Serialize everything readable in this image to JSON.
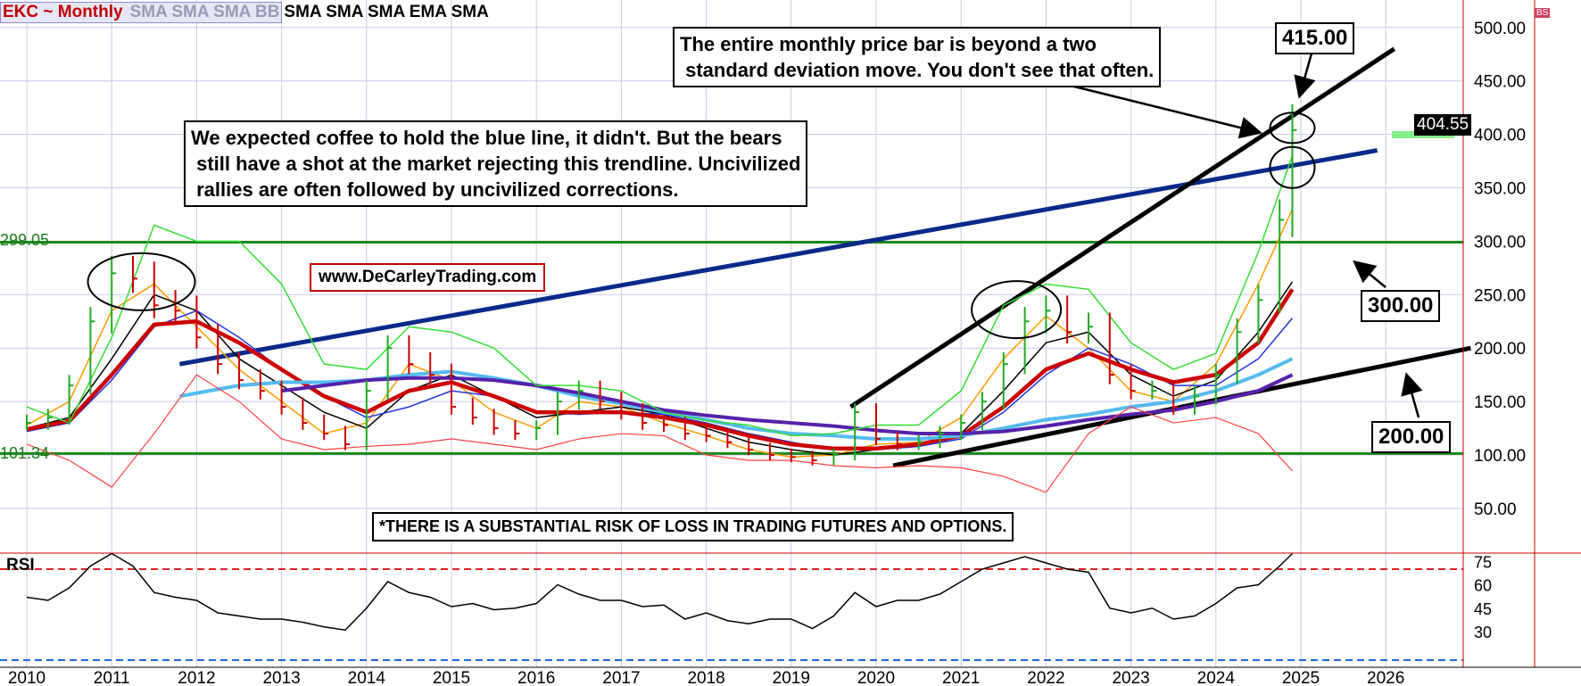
{
  "header": {
    "symbol": "EKC ~ Monthly",
    "studies_faded": "SMA SMA SMA BB",
    "studies": "SMA SMA SMA EMA SMA"
  },
  "annotations": {
    "std_note": "The entire monthly price bar is beyond a two\n standard deviation move. You don't see that often.",
    "trend_note": "We expected coffee to hold the blue line, it didn't. But the bears\n still have a shot at the market rejecting this trendline. Uncivilized\n rallies are often followed by uncivilized corrections.",
    "website": "www.DeCarleyTrading.com",
    "risk": "*THERE IS A SUBSTANTIAL RISK OF LOSS IN TRADING FUTURES AND OPTIONS.",
    "level_415": "415.00",
    "level_300": "300.00",
    "level_200": "200.00",
    "tag_high": "299.05",
    "tag_low": "101.34",
    "last_price": "404.55",
    "bs_badge": "BS"
  },
  "rsi_panel": {
    "title": "RSI"
  },
  "colors": {
    "grid": "#c8c8e8",
    "axis": "#cc0000",
    "hline": "#1a8a1a",
    "blue_trend": "#0a2a8a",
    "black_trend": "#000000",
    "bb": "#ff4040",
    "bb_mid": "#33dd33",
    "ema": "#cc0000",
    "sma_fast": "#ff9900",
    "sma_mid": "#000000",
    "sma_blue": "#2233dd",
    "sma_light": "#55bbf0",
    "sma_purple": "#5522aa"
  },
  "chart_data": {
    "type": "line",
    "title": "EKC ~ Monthly",
    "x_ticks": [
      "2010",
      "2011",
      "2012",
      "2013",
      "2014",
      "2015",
      "2016",
      "2017",
      "2018",
      "2019",
      "2020",
      "2021",
      "2022",
      "2023",
      "2024",
      "2025",
      "2026"
    ],
    "y_ticks": [
      "500.00",
      "450.00",
      "400.00",
      "350.00",
      "300.00",
      "250.00",
      "200.00",
      "150.00",
      "100.00",
      "50.00"
    ],
    "ylim": [
      20,
      530
    ],
    "horizontal_lines": [
      299.05,
      101.34
    ],
    "price": {
      "x": [
        2010.0,
        2010.25,
        2010.5,
        2010.75,
        2011.0,
        2011.25,
        2011.5,
        2011.75,
        2012.0,
        2012.25,
        2012.5,
        2012.75,
        2013.0,
        2013.25,
        2013.5,
        2013.75,
        2014.0,
        2014.25,
        2014.5,
        2014.75,
        2015.0,
        2015.25,
        2015.5,
        2015.75,
        2016.0,
        2016.25,
        2016.5,
        2016.75,
        2017.0,
        2017.25,
        2017.5,
        2017.75,
        2018.0,
        2018.25,
        2018.5,
        2018.75,
        2019.0,
        2019.25,
        2019.5,
        2019.75,
        2020.0,
        2020.25,
        2020.5,
        2020.75,
        2021.0,
        2021.25,
        2021.5,
        2021.75,
        2022.0,
        2022.25,
        2022.5,
        2022.75,
        2023.0,
        2023.25,
        2023.5,
        2023.75,
        2024.0,
        2024.25,
        2024.5,
        2024.75,
        2024.9
      ],
      "values": [
        130,
        135,
        165,
        225,
        270,
        265,
        240,
        235,
        210,
        185,
        170,
        160,
        145,
        130,
        120,
        110,
        160,
        200,
        185,
        175,
        145,
        135,
        125,
        120,
        125,
        150,
        160,
        150,
        140,
        130,
        128,
        120,
        118,
        112,
        105,
        100,
        98,
        95,
        100,
        140,
        115,
        110,
        112,
        120,
        130,
        150,
        185,
        225,
        235,
        215,
        220,
        175,
        160,
        160,
        145,
        155,
        175,
        215,
        245,
        320,
        404
      ]
    },
    "series": [
      {
        "name": "SMA",
        "x": [
          2010.0,
          2010.5,
          2011.0,
          2011.5,
          2012.0,
          2012.5,
          2013.0,
          2013.5,
          2014.0,
          2014.5,
          2015.0,
          2015.5,
          2016.0,
          2016.5,
          2017.0,
          2017.5,
          2018.0,
          2018.5,
          2019.0,
          2019.5,
          2020.0,
          2020.5,
          2021.0,
          2021.5,
          2022.0,
          2022.5,
          2023.0,
          2023.5,
          2024.0,
          2024.5,
          2024.9
        ],
        "values": [
          128,
          150,
          235,
          260,
          220,
          180,
          150,
          120,
          130,
          185,
          170,
          140,
          125,
          150,
          145,
          130,
          118,
          105,
          98,
          100,
          110,
          112,
          135,
          190,
          230,
          200,
          160,
          150,
          185,
          260,
          330
        ]
      },
      {
        "name": "SMA",
        "x": [
          2010.0,
          2010.5,
          2011.0,
          2011.5,
          2012.0,
          2012.5,
          2013.0,
          2013.5,
          2014.0,
          2014.5,
          2015.0,
          2015.5,
          2016.0,
          2016.5,
          2017.0,
          2017.5,
          2018.0,
          2018.5,
          2019.0,
          2019.5,
          2020.0,
          2020.5,
          2021.0,
          2021.5,
          2022.0,
          2022.5,
          2023.0,
          2023.5,
          2024.0,
          2024.5,
          2024.9
        ],
        "values": [
          125,
          135,
          190,
          250,
          235,
          190,
          165,
          140,
          125,
          160,
          175,
          155,
          135,
          140,
          145,
          138,
          125,
          112,
          105,
          100,
          105,
          108,
          120,
          160,
          205,
          215,
          175,
          155,
          170,
          215,
          262
        ]
      },
      {
        "name": "SMA",
        "x": [
          2010.0,
          2010.5,
          2011.0,
          2011.5,
          2012.0,
          2012.5,
          2013.0,
          2013.5,
          2014.0,
          2014.5,
          2015.0,
          2015.5,
          2016.0,
          2016.5,
          2017.0,
          2017.5,
          2018.0,
          2018.5,
          2019.0,
          2019.5,
          2020.0,
          2020.5,
          2021.0,
          2021.5,
          2022.0,
          2022.5,
          2023.0,
          2023.5,
          2024.0,
          2024.5,
          2024.9
        ],
        "values": [
          122,
          130,
          170,
          220,
          235,
          210,
          180,
          155,
          135,
          145,
          160,
          155,
          140,
          138,
          140,
          138,
          130,
          120,
          112,
          105,
          105,
          108,
          115,
          140,
          175,
          200,
          185,
          165,
          165,
          190,
          228
        ]
      },
      {
        "name": "EMA",
        "x": [
          2010.0,
          2010.5,
          2011.0,
          2011.5,
          2012.0,
          2012.5,
          2013.0,
          2013.5,
          2014.0,
          2014.5,
          2015.0,
          2015.5,
          2016.0,
          2016.5,
          2017.0,
          2017.5,
          2018.0,
          2018.5,
          2019.0,
          2019.5,
          2020.0,
          2020.5,
          2021.0,
          2021.5,
          2022.0,
          2022.5,
          2023.0,
          2023.5,
          2024.0,
          2024.5,
          2024.9
        ],
        "values": [
          124,
          132,
          175,
          222,
          225,
          205,
          180,
          155,
          140,
          160,
          168,
          155,
          140,
          140,
          140,
          135,
          128,
          118,
          110,
          106,
          106,
          110,
          118,
          145,
          180,
          195,
          180,
          168,
          175,
          205,
          255
        ]
      },
      {
        "name": "SMA",
        "x": [
          2011.8,
          2012.5,
          2013.0,
          2013.5,
          2014.0,
          2014.5,
          2015.0,
          2015.5,
          2016.0,
          2016.5,
          2017.0,
          2017.5,
          2018.0,
          2018.5,
          2019.0,
          2019.5,
          2020.0,
          2020.5,
          2021.0,
          2021.5,
          2022.0,
          2022.5,
          2023.0,
          2023.5,
          2024.0,
          2024.5,
          2024.9
        ],
        "values": [
          155,
          165,
          168,
          168,
          170,
          175,
          178,
          172,
          165,
          155,
          148,
          140,
          133,
          125,
          120,
          118,
          115,
          115,
          118,
          125,
          133,
          138,
          145,
          150,
          160,
          175,
          190
        ]
      },
      {
        "name": "SMA",
        "x": [
          2013.0,
          2013.5,
          2014.0,
          2014.5,
          2015.0,
          2015.5,
          2016.0,
          2016.5,
          2017.0,
          2017.5,
          2018.0,
          2018.5,
          2019.0,
          2019.5,
          2020.0,
          2020.5,
          2021.0,
          2021.5,
          2022.0,
          2022.5,
          2023.0,
          2023.5,
          2024.0,
          2024.5,
          2024.9
        ],
        "values": [
          160,
          165,
          170,
          172,
          172,
          170,
          165,
          158,
          150,
          142,
          137,
          133,
          130,
          127,
          123,
          120,
          120,
          122,
          127,
          133,
          138,
          142,
          150,
          160,
          175
        ]
      },
      {
        "name": "BB",
        "x": [
          2010.0,
          2010.5,
          2011.0,
          2011.5,
          2012.0,
          2012.5,
          2013.0,
          2013.5,
          2014.0,
          2014.5,
          2015.0,
          2015.5,
          2016.0,
          2016.5,
          2017.0,
          2017.5,
          2018.0,
          2018.5,
          2019.0,
          2019.5,
          2020.0,
          2020.5,
          2021.0,
          2021.5,
          2022.0,
          2022.5,
          2023.0,
          2023.5,
          2024.0,
          2024.5,
          2024.9
        ],
        "values": [
          145,
          130,
          210,
          315,
          300,
          300,
          260,
          185,
          180,
          220,
          215,
          200,
          165,
          165,
          160,
          140,
          132,
          128,
          118,
          120,
          128,
          128,
          160,
          240,
          260,
          255,
          205,
          180,
          195,
          290,
          380
        ]
      },
      {
        "name": "BB",
        "x": [
          2010.0,
          2010.5,
          2011.0,
          2011.5,
          2012.0,
          2012.5,
          2013.0,
          2013.5,
          2014.0,
          2014.5,
          2015.0,
          2015.5,
          2016.0,
          2016.5,
          2017.0,
          2017.5,
          2018.0,
          2018.5,
          2019.0,
          2019.5,
          2020.0,
          2020.5,
          2021.0,
          2021.5,
          2022.0,
          2022.5,
          2023.0,
          2023.5,
          2024.0,
          2024.5,
          2024.9
        ],
        "values": [
          110,
          95,
          70,
          120,
          175,
          150,
          115,
          105,
          108,
          110,
          115,
          110,
          105,
          115,
          120,
          118,
          100,
          95,
          95,
          90,
          88,
          90,
          88,
          80,
          65,
          120,
          145,
          130,
          135,
          120,
          85
        ]
      }
    ],
    "rsi": {
      "yticks": [
        "75",
        "60",
        "45",
        "30"
      ],
      "ylim": [
        28,
        85
      ],
      "ref_lines": [
        70,
        30
      ],
      "x": [
        2010.0,
        2010.25,
        2010.5,
        2010.75,
        2011.0,
        2011.25,
        2011.5,
        2011.75,
        2012.0,
        2012.25,
        2012.5,
        2012.75,
        2013.0,
        2013.25,
        2013.5,
        2013.75,
        2014.0,
        2014.25,
        2014.5,
        2014.75,
        2015.0,
        2015.25,
        2015.5,
        2015.75,
        2016.0,
        2016.25,
        2016.5,
        2016.75,
        2017.0,
        2017.25,
        2017.5,
        2017.75,
        2018.0,
        2018.25,
        2018.5,
        2018.75,
        2019.0,
        2019.25,
        2019.5,
        2019.75,
        2020.0,
        2020.25,
        2020.5,
        2020.75,
        2021.0,
        2021.25,
        2021.5,
        2021.75,
        2022.0,
        2022.25,
        2022.5,
        2022.75,
        2023.0,
        2023.25,
        2023.5,
        2023.75,
        2024.0,
        2024.25,
        2024.5,
        2024.75,
        2024.9
      ],
      "values": [
        52,
        50,
        58,
        72,
        80,
        72,
        55,
        52,
        50,
        42,
        40,
        38,
        38,
        36,
        33,
        31,
        45,
        62,
        55,
        52,
        46,
        48,
        44,
        45,
        48,
        60,
        54,
        50,
        50,
        46,
        47,
        38,
        42,
        37,
        35,
        38,
        38,
        32,
        40,
        55,
        46,
        50,
        50,
        54,
        62,
        70,
        74,
        78,
        74,
        70,
        68,
        45,
        42,
        45,
        38,
        40,
        48,
        58,
        60,
        72,
        80
      ]
    }
  }
}
